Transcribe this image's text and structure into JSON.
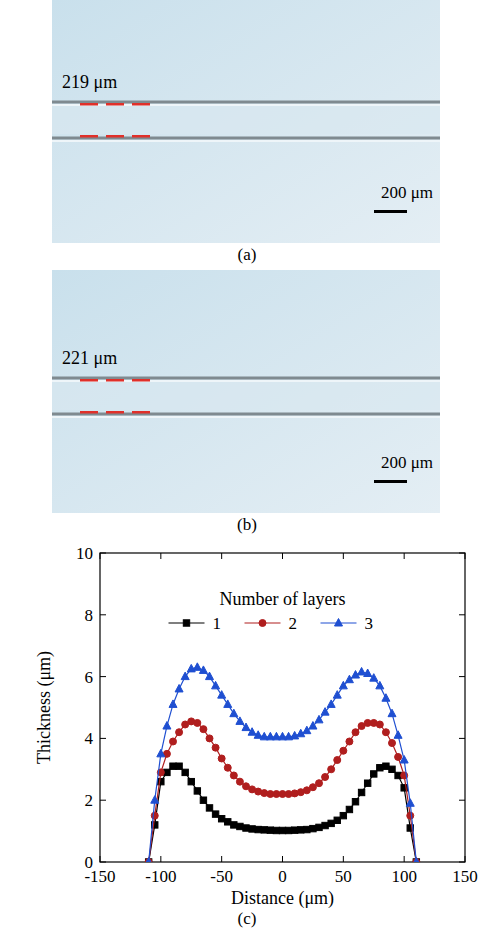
{
  "panels": [
    {
      "label": "(a)",
      "annotation": "219 μm",
      "scale_bar": "200 μm"
    },
    {
      "label": "(b)",
      "annotation": "221 μm",
      "scale_bar": "200 μm"
    },
    {
      "label": "(c)"
    }
  ],
  "chart_data": {
    "type": "line",
    "x_label": "Distance (μm)",
    "y_label": "Thickness (μm)",
    "legend_title": "Number of layers",
    "legend": "top",
    "xlim": [
      -150,
      150
    ],
    "xticks": [
      -150,
      -100,
      -50,
      0,
      50,
      100,
      150
    ],
    "ylim": [
      0,
      10
    ],
    "yticks": [
      0,
      2,
      4,
      6,
      8,
      10
    ],
    "x": [
      -110,
      -105,
      -100,
      -95,
      -90,
      -85,
      -80,
      -75,
      -70,
      -65,
      -60,
      -55,
      -50,
      -45,
      -40,
      -35,
      -30,
      -25,
      -20,
      -15,
      -10,
      -5,
      0,
      5,
      10,
      15,
      20,
      25,
      30,
      35,
      40,
      45,
      50,
      55,
      60,
      65,
      70,
      75,
      80,
      85,
      90,
      95,
      100,
      105,
      110
    ],
    "series": [
      {
        "name": "1",
        "color": "#000000",
        "marker": "square",
        "values": [
          0,
          1.2,
          2.6,
          2.9,
          3.1,
          3.1,
          2.9,
          2.6,
          2.3,
          2.0,
          1.75,
          1.55,
          1.4,
          1.3,
          1.2,
          1.15,
          1.1,
          1.07,
          1.05,
          1.04,
          1.03,
          1.02,
          1.02,
          1.02,
          1.03,
          1.04,
          1.05,
          1.08,
          1.12,
          1.18,
          1.25,
          1.35,
          1.5,
          1.7,
          1.95,
          2.25,
          2.55,
          2.85,
          3.05,
          3.1,
          3.0,
          2.8,
          2.4,
          1.1,
          0
        ]
      },
      {
        "name": "2",
        "color": "#b01e1e",
        "marker": "circle",
        "values": [
          0,
          1.5,
          2.9,
          3.5,
          3.9,
          4.2,
          4.45,
          4.55,
          4.5,
          4.3,
          4.0,
          3.7,
          3.35,
          3.05,
          2.8,
          2.6,
          2.45,
          2.35,
          2.28,
          2.23,
          2.2,
          2.2,
          2.2,
          2.2,
          2.22,
          2.26,
          2.32,
          2.42,
          2.55,
          2.75,
          3.0,
          3.3,
          3.6,
          3.9,
          4.2,
          4.4,
          4.5,
          4.5,
          4.45,
          4.2,
          3.85,
          3.4,
          2.8,
          1.5,
          0
        ]
      },
      {
        "name": "3",
        "color": "#1f4fd1",
        "marker": "triangle",
        "values": [
          0,
          2.0,
          3.5,
          4.4,
          5.1,
          5.6,
          6.0,
          6.25,
          6.3,
          6.2,
          6.0,
          5.7,
          5.4,
          5.1,
          4.8,
          4.55,
          4.35,
          4.2,
          4.1,
          4.05,
          4.05,
          4.05,
          4.05,
          4.05,
          4.08,
          4.15,
          4.25,
          4.4,
          4.6,
          4.85,
          5.1,
          5.4,
          5.7,
          5.9,
          6.05,
          6.15,
          6.1,
          5.95,
          5.7,
          5.3,
          4.8,
          4.1,
          3.3,
          1.9,
          0
        ]
      }
    ]
  }
}
